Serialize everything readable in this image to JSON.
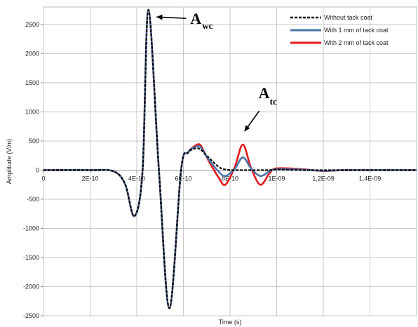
{
  "chart_data": {
    "type": "line",
    "title": "",
    "xlabel": "Time (s)",
    "ylabel": "Amplitude (V/m)",
    "xlim": [
      0,
      1.6e-09
    ],
    "ylim": [
      -2500,
      2800
    ],
    "grid": true,
    "legend_position": "top-right",
    "x_ticks": [
      0,
      2e-10,
      4e-10,
      6e-10,
      8e-10,
      1e-09,
      1.2e-09,
      1.4e-09
    ],
    "x_tick_labels": [
      "0",
      "2E-10",
      "4E-10",
      "6E-10",
      "8E-10",
      "1E-09",
      "1,2E-09",
      "1,4E-09"
    ],
    "y_ticks": [
      -2500,
      -2000,
      -1500,
      -1000,
      -500,
      0,
      500,
      1000,
      1500,
      2000,
      2500
    ],
    "y_tick_labels": [
      "-2500",
      "-2000",
      "-1500",
      "-1000",
      "-500",
      "0",
      "500",
      "1000",
      "1500",
      "2000",
      "2500"
    ],
    "x": [
      0,
      2e-10,
      3e-10,
      3.5e-10,
      3.9e-10,
      4.25e-10,
      4.5e-10,
      4.95e-10,
      5.4e-10,
      5.9e-10,
      6.2e-10,
      6.55e-10,
      6.75e-10,
      7e-10,
      7.5e-10,
      7.8e-10,
      8.2e-10,
      8.55e-10,
      8.9e-10,
      9.3e-10,
      9.7e-10,
      1e-09,
      1.1e-09,
      1.2e-09,
      1.3e-09,
      1.6e-09
    ],
    "series": [
      {
        "name": "Without tack coat",
        "color": "#000000",
        "style": "dashed",
        "y": [
          0,
          0,
          -20,
          -240,
          -790,
          0,
          2750,
          0,
          -2370,
          0,
          300,
          375,
          350,
          250,
          60,
          10,
          0,
          0,
          0,
          0,
          0,
          10,
          0,
          0,
          0,
          0
        ]
      },
      {
        "name": "With 1 mm of tack coat",
        "color": "#4a74a8",
        "style": "solid",
        "y": [
          0,
          0,
          -20,
          -240,
          -790,
          0,
          2750,
          0,
          -2370,
          0,
          305,
          405,
          390,
          230,
          -20,
          -100,
          20,
          220,
          30,
          -100,
          -20,
          15,
          10,
          -10,
          0,
          0
        ]
      },
      {
        "name": "With 2 mm of tack coat",
        "color": "#e41a1c",
        "style": "solid",
        "y": [
          0,
          0,
          -20,
          -240,
          -790,
          0,
          2750,
          0,
          -2370,
          0,
          305,
          430,
          420,
          220,
          -120,
          -250,
          50,
          440,
          40,
          -250,
          -50,
          30,
          20,
          -15,
          0,
          0
        ]
      }
    ],
    "annotations": [
      {
        "main": "A",
        "sub": "wc",
        "x": 4.55e-10,
        "y": 2750
      },
      {
        "main": "A",
        "sub": "tc",
        "x": 8.5e-10,
        "y": 450
      }
    ]
  }
}
